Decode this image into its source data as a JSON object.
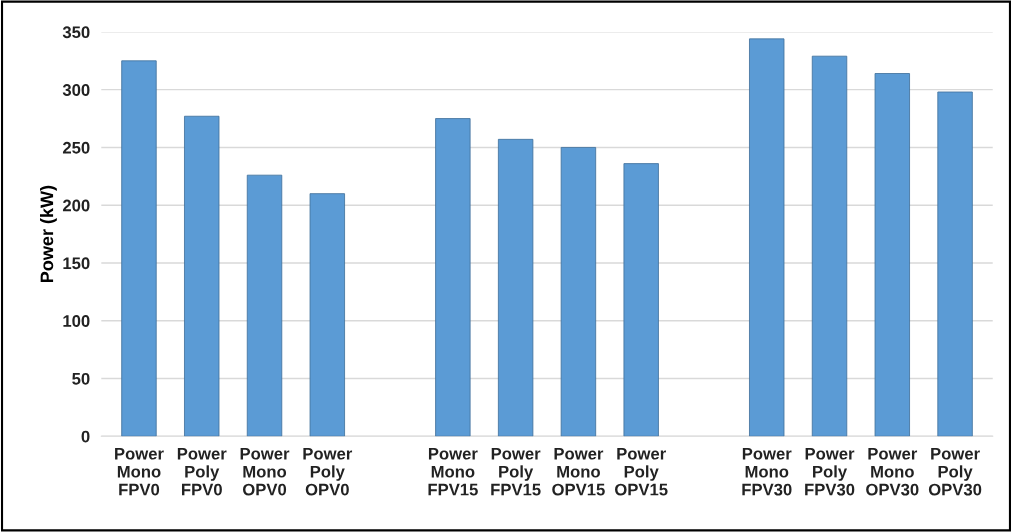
{
  "chart_data": {
    "type": "bar",
    "ylabel": "Power (kW)",
    "categories": [
      "Power\nMono\nFPV0",
      "Power\nPoly\nFPV0",
      "Power\nMono\nOPV0",
      "Power\nPoly\nOPV0",
      null,
      "Power\nMono\nFPV15",
      "Power\nPoly\nFPV15",
      "Power\nMono\nOPV15",
      "Power\nPoly\nOPV15",
      null,
      "Power\nMono\nFPV30",
      "Power\nPoly\nFPV30",
      "Power\nMono\nOPV30",
      "Power\nPoly\nOPV30"
    ],
    "values": [
      325,
      277,
      226,
      210,
      null,
      275,
      257,
      250,
      236,
      null,
      344,
      329,
      314,
      298
    ],
    "color": "#5b9bd5",
    "ylim": [
      0,
      350
    ],
    "yticks": [
      0,
      50,
      100,
      150,
      200,
      250,
      300,
      350
    ],
    "grid": "y",
    "legend": false
  }
}
